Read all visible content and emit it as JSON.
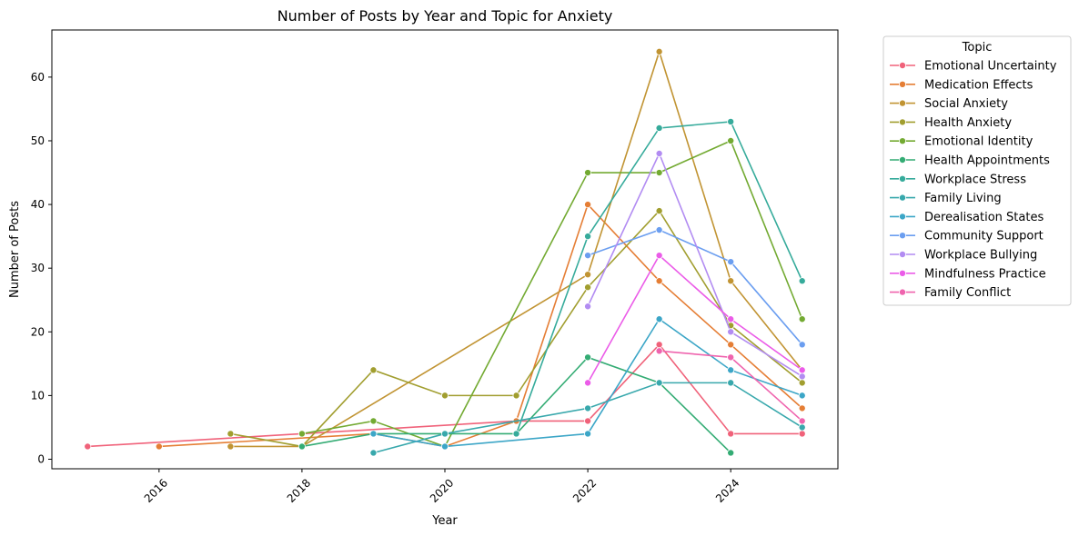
{
  "chart_data": {
    "type": "line",
    "title": "Number of Posts by Year and Topic for Anxiety",
    "xlabel": "Year",
    "ylabel": "Number of Posts",
    "xlim": [
      2014.5,
      2025.5
    ],
    "ylim": [
      -1.5,
      67.4
    ],
    "xticks": [
      2016,
      2018,
      2020,
      2022,
      2024
    ],
    "yticks": [
      0,
      10,
      20,
      30,
      40,
      50,
      60
    ],
    "grid": false,
    "legend": {
      "title": "Topic",
      "placement": "outside-right"
    },
    "series": [
      {
        "name": "Emotional Uncertainty",
        "color": "#f0627a",
        "points": [
          [
            2015,
            2
          ],
          [
            2021,
            6
          ],
          [
            2022,
            6
          ],
          [
            2023,
            18
          ],
          [
            2024,
            4
          ],
          [
            2025,
            4
          ]
        ]
      },
      {
        "name": "Medication Effects",
        "color": "#e57e35",
        "points": [
          [
            2016,
            2
          ],
          [
            2019,
            4
          ],
          [
            2020,
            2
          ],
          [
            2021,
            6
          ],
          [
            2022,
            40
          ],
          [
            2023,
            28
          ],
          [
            2024,
            18
          ],
          [
            2025,
            8
          ]
        ]
      },
      {
        "name": "Social Anxiety",
        "color": "#c19433",
        "points": [
          [
            2017,
            2
          ],
          [
            2018,
            2
          ],
          [
            2022,
            29
          ],
          [
            2023,
            64
          ],
          [
            2024,
            28
          ],
          [
            2025,
            14
          ]
        ]
      },
      {
        "name": "Health Anxiety",
        "color": "#a19e2f",
        "points": [
          [
            2017,
            4
          ],
          [
            2018,
            2
          ],
          [
            2019,
            14
          ],
          [
            2020,
            10
          ],
          [
            2021,
            10
          ],
          [
            2022,
            27
          ],
          [
            2023,
            39
          ],
          [
            2024,
            21
          ],
          [
            2025,
            12
          ]
        ]
      },
      {
        "name": "Emotional Identity",
        "color": "#73aa32",
        "points": [
          [
            2018,
            4
          ],
          [
            2019,
            6
          ],
          [
            2020,
            2
          ],
          [
            2022,
            45
          ],
          [
            2023,
            45
          ],
          [
            2024,
            50
          ],
          [
            2025,
            22
          ]
        ]
      },
      {
        "name": "Health Appointments",
        "color": "#34ac74",
        "points": [
          [
            2018,
            2
          ],
          [
            2019,
            4
          ],
          [
            2020,
            4
          ],
          [
            2021,
            4
          ],
          [
            2022,
            16
          ],
          [
            2023,
            12
          ],
          [
            2024,
            1
          ]
        ]
      },
      {
        "name": "Workplace Stress",
        "color": "#36ab9b",
        "points": [
          [
            2021,
            4
          ],
          [
            2022,
            35
          ],
          [
            2023,
            52
          ],
          [
            2024,
            53
          ],
          [
            2025,
            28
          ]
        ]
      },
      {
        "name": "Family Living",
        "color": "#38a8ac",
        "points": [
          [
            2019,
            1
          ],
          [
            2020,
            4
          ],
          [
            2022,
            8
          ],
          [
            2023,
            12
          ],
          [
            2024,
            12
          ],
          [
            2025,
            5
          ]
        ]
      },
      {
        "name": "Derealisation States",
        "color": "#3ca6c7",
        "points": [
          [
            2019,
            4
          ],
          [
            2020,
            2
          ],
          [
            2022,
            4
          ],
          [
            2023,
            22
          ],
          [
            2024,
            14
          ],
          [
            2025,
            10
          ]
        ]
      },
      {
        "name": "Community Support",
        "color": "#6b9ef0",
        "points": [
          [
            2022,
            32
          ],
          [
            2023,
            36
          ],
          [
            2024,
            31
          ],
          [
            2025,
            18
          ]
        ]
      },
      {
        "name": "Workplace Bullying",
        "color": "#b28cf2",
        "points": [
          [
            2022,
            24
          ],
          [
            2023,
            48
          ],
          [
            2024,
            20
          ],
          [
            2025,
            13
          ]
        ]
      },
      {
        "name": "Mindfulness Practice",
        "color": "#eb5ce8",
        "points": [
          [
            2022,
            12
          ],
          [
            2023,
            32
          ],
          [
            2024,
            22
          ],
          [
            2025,
            14
          ]
        ]
      },
      {
        "name": "Family Conflict",
        "color": "#ef64ae",
        "points": [
          [
            2023,
            17
          ],
          [
            2024,
            16
          ],
          [
            2025,
            6
          ]
        ]
      }
    ]
  }
}
